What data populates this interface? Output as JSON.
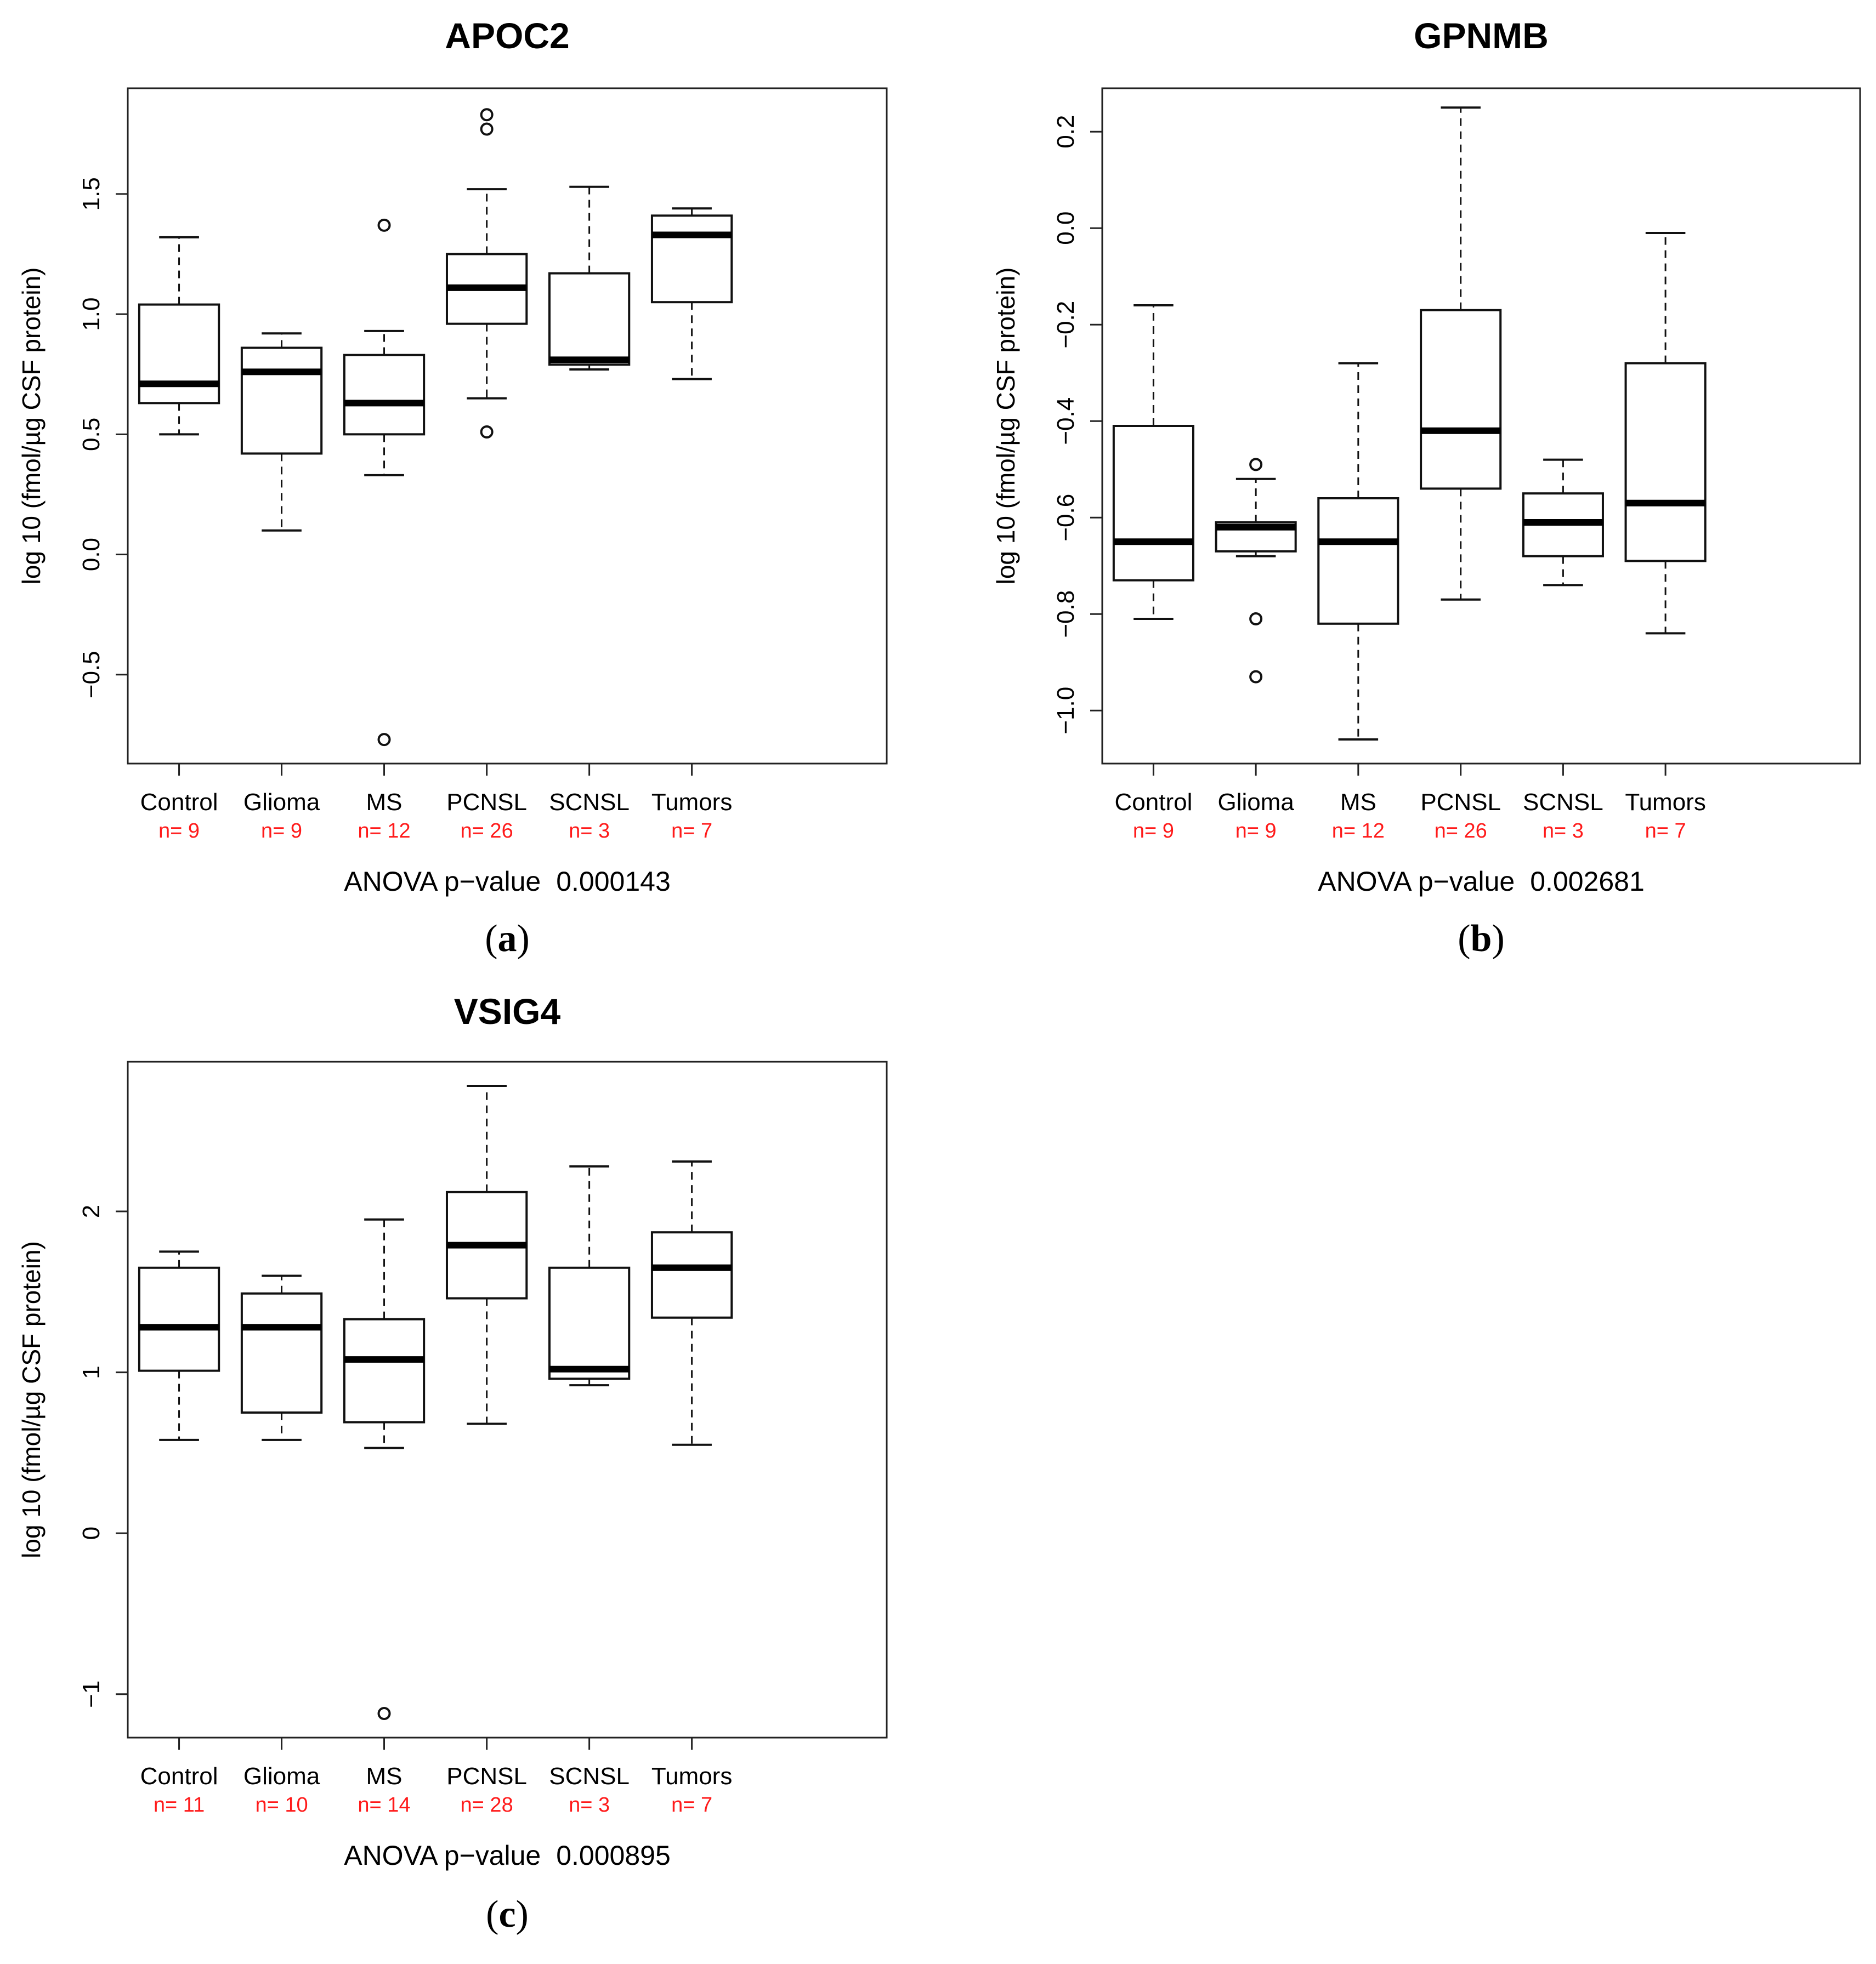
{
  "chart_data": [
    {
      "type": "boxplot",
      "panel_label": "a",
      "title": "APOC2",
      "ylabel": "log 10 (fmol/µg CSF protein)",
      "ylim": [
        -0.87,
        1.94
      ],
      "yticks": [
        -0.5,
        0.0,
        0.5,
        1.0,
        1.5
      ],
      "ytick_labels": [
        "−0.5",
        "0.0",
        "0.5",
        "1.0",
        "1.5"
      ],
      "categories": [
        "Control",
        "Glioma",
        "MS",
        "PCNSL",
        "SCNSL",
        "Tumors"
      ],
      "n_labels": [
        "n= 9",
        "n= 9",
        "n= 12",
        "n= 26",
        "n= 3",
        "n= 7"
      ],
      "boxes": [
        {
          "whisker_low": 0.5,
          "q1": 0.63,
          "median": 0.71,
          "q3": 1.04,
          "whisker_high": 1.32,
          "outliers": []
        },
        {
          "whisker_low": 0.1,
          "q1": 0.42,
          "median": 0.76,
          "q3": 0.86,
          "whisker_high": 0.92,
          "outliers": []
        },
        {
          "whisker_low": 0.33,
          "q1": 0.5,
          "median": 0.63,
          "q3": 0.83,
          "whisker_high": 0.93,
          "outliers": [
            1.37,
            -0.77
          ]
        },
        {
          "whisker_low": 0.65,
          "q1": 0.96,
          "median": 1.11,
          "q3": 1.25,
          "whisker_high": 1.52,
          "outliers": [
            1.83,
            1.77,
            0.51
          ]
        },
        {
          "whisker_low": 0.77,
          "q1": 0.79,
          "median": 0.81,
          "q3": 1.17,
          "whisker_high": 1.53,
          "outliers": []
        },
        {
          "whisker_low": 0.73,
          "q1": 1.05,
          "median": 1.33,
          "q3": 1.41,
          "whisker_high": 1.44,
          "outliers": []
        }
      ],
      "anova_label": "ANOVA p−value",
      "anova_value": "0.000143"
    },
    {
      "type": "boxplot",
      "panel_label": "b",
      "title": "GPNMB",
      "ylabel": "log 10 (fmol/µg CSF protein)",
      "ylim": [
        -1.11,
        0.29
      ],
      "yticks": [
        -1.0,
        -0.8,
        -0.6,
        -0.4,
        -0.2,
        0.0,
        0.2
      ],
      "ytick_labels": [
        "−1.0",
        "−0.8",
        "−0.6",
        "−0.4",
        "−0.2",
        "0.0",
        "0.2"
      ],
      "categories": [
        "Control",
        "Glioma",
        "MS",
        "PCNSL",
        "SCNSL",
        "Tumors"
      ],
      "n_labels": [
        "n= 9",
        "n= 9",
        "n= 12",
        "n= 26",
        "n= 3",
        "n= 7"
      ],
      "boxes": [
        {
          "whisker_low": -0.81,
          "q1": -0.73,
          "median": -0.65,
          "q3": -0.41,
          "whisker_high": -0.16,
          "outliers": []
        },
        {
          "whisker_low": -0.68,
          "q1": -0.67,
          "median": -0.62,
          "q3": -0.61,
          "whisker_high": -0.52,
          "outliers": [
            -0.49,
            -0.81,
            -0.93
          ]
        },
        {
          "whisker_low": -1.06,
          "q1": -0.82,
          "median": -0.65,
          "q3": -0.56,
          "whisker_high": -0.28,
          "outliers": []
        },
        {
          "whisker_low": -0.77,
          "q1": -0.54,
          "median": -0.42,
          "q3": -0.17,
          "whisker_high": 0.25,
          "outliers": []
        },
        {
          "whisker_low": -0.74,
          "q1": -0.68,
          "median": -0.61,
          "q3": -0.55,
          "whisker_high": -0.48,
          "outliers": []
        },
        {
          "whisker_low": -0.84,
          "q1": -0.69,
          "median": -0.57,
          "q3": -0.28,
          "whisker_high": -0.01,
          "outliers": []
        }
      ],
      "anova_label": "ANOVA p−value",
      "anova_value": "0.002681"
    },
    {
      "type": "boxplot",
      "panel_label": "c",
      "title": "VSIG4",
      "ylabel": "log 10 (fmol/µg CSF protein)",
      "ylim": [
        -1.27,
        2.93
      ],
      "yticks": [
        -1,
        0,
        1,
        2
      ],
      "ytick_labels": [
        "−1",
        "0",
        "1",
        "2"
      ],
      "categories": [
        "Control",
        "Glioma",
        "MS",
        "PCNSL",
        "SCNSL",
        "Tumors"
      ],
      "n_labels": [
        "n= 11",
        "n= 10",
        "n= 14",
        "n= 28",
        "n= 3",
        "n= 7"
      ],
      "boxes": [
        {
          "whisker_low": 0.58,
          "q1": 1.01,
          "median": 1.28,
          "q3": 1.65,
          "whisker_high": 1.75,
          "outliers": []
        },
        {
          "whisker_low": 0.58,
          "q1": 0.75,
          "median": 1.28,
          "q3": 1.49,
          "whisker_high": 1.6,
          "outliers": []
        },
        {
          "whisker_low": 0.53,
          "q1": 0.69,
          "median": 1.08,
          "q3": 1.33,
          "whisker_high": 1.95,
          "outliers": [
            -1.12
          ]
        },
        {
          "whisker_low": 0.68,
          "q1": 1.46,
          "median": 1.79,
          "q3": 2.12,
          "whisker_high": 2.78,
          "outliers": []
        },
        {
          "whisker_low": 0.92,
          "q1": 0.96,
          "median": 1.02,
          "q3": 1.65,
          "whisker_high": 2.28,
          "outliers": []
        },
        {
          "whisker_low": 0.55,
          "q1": 1.34,
          "median": 1.65,
          "q3": 1.87,
          "whisker_high": 2.31,
          "outliers": []
        }
      ],
      "anova_label": "ANOVA p−value",
      "anova_value": "0.000895"
    }
  ]
}
